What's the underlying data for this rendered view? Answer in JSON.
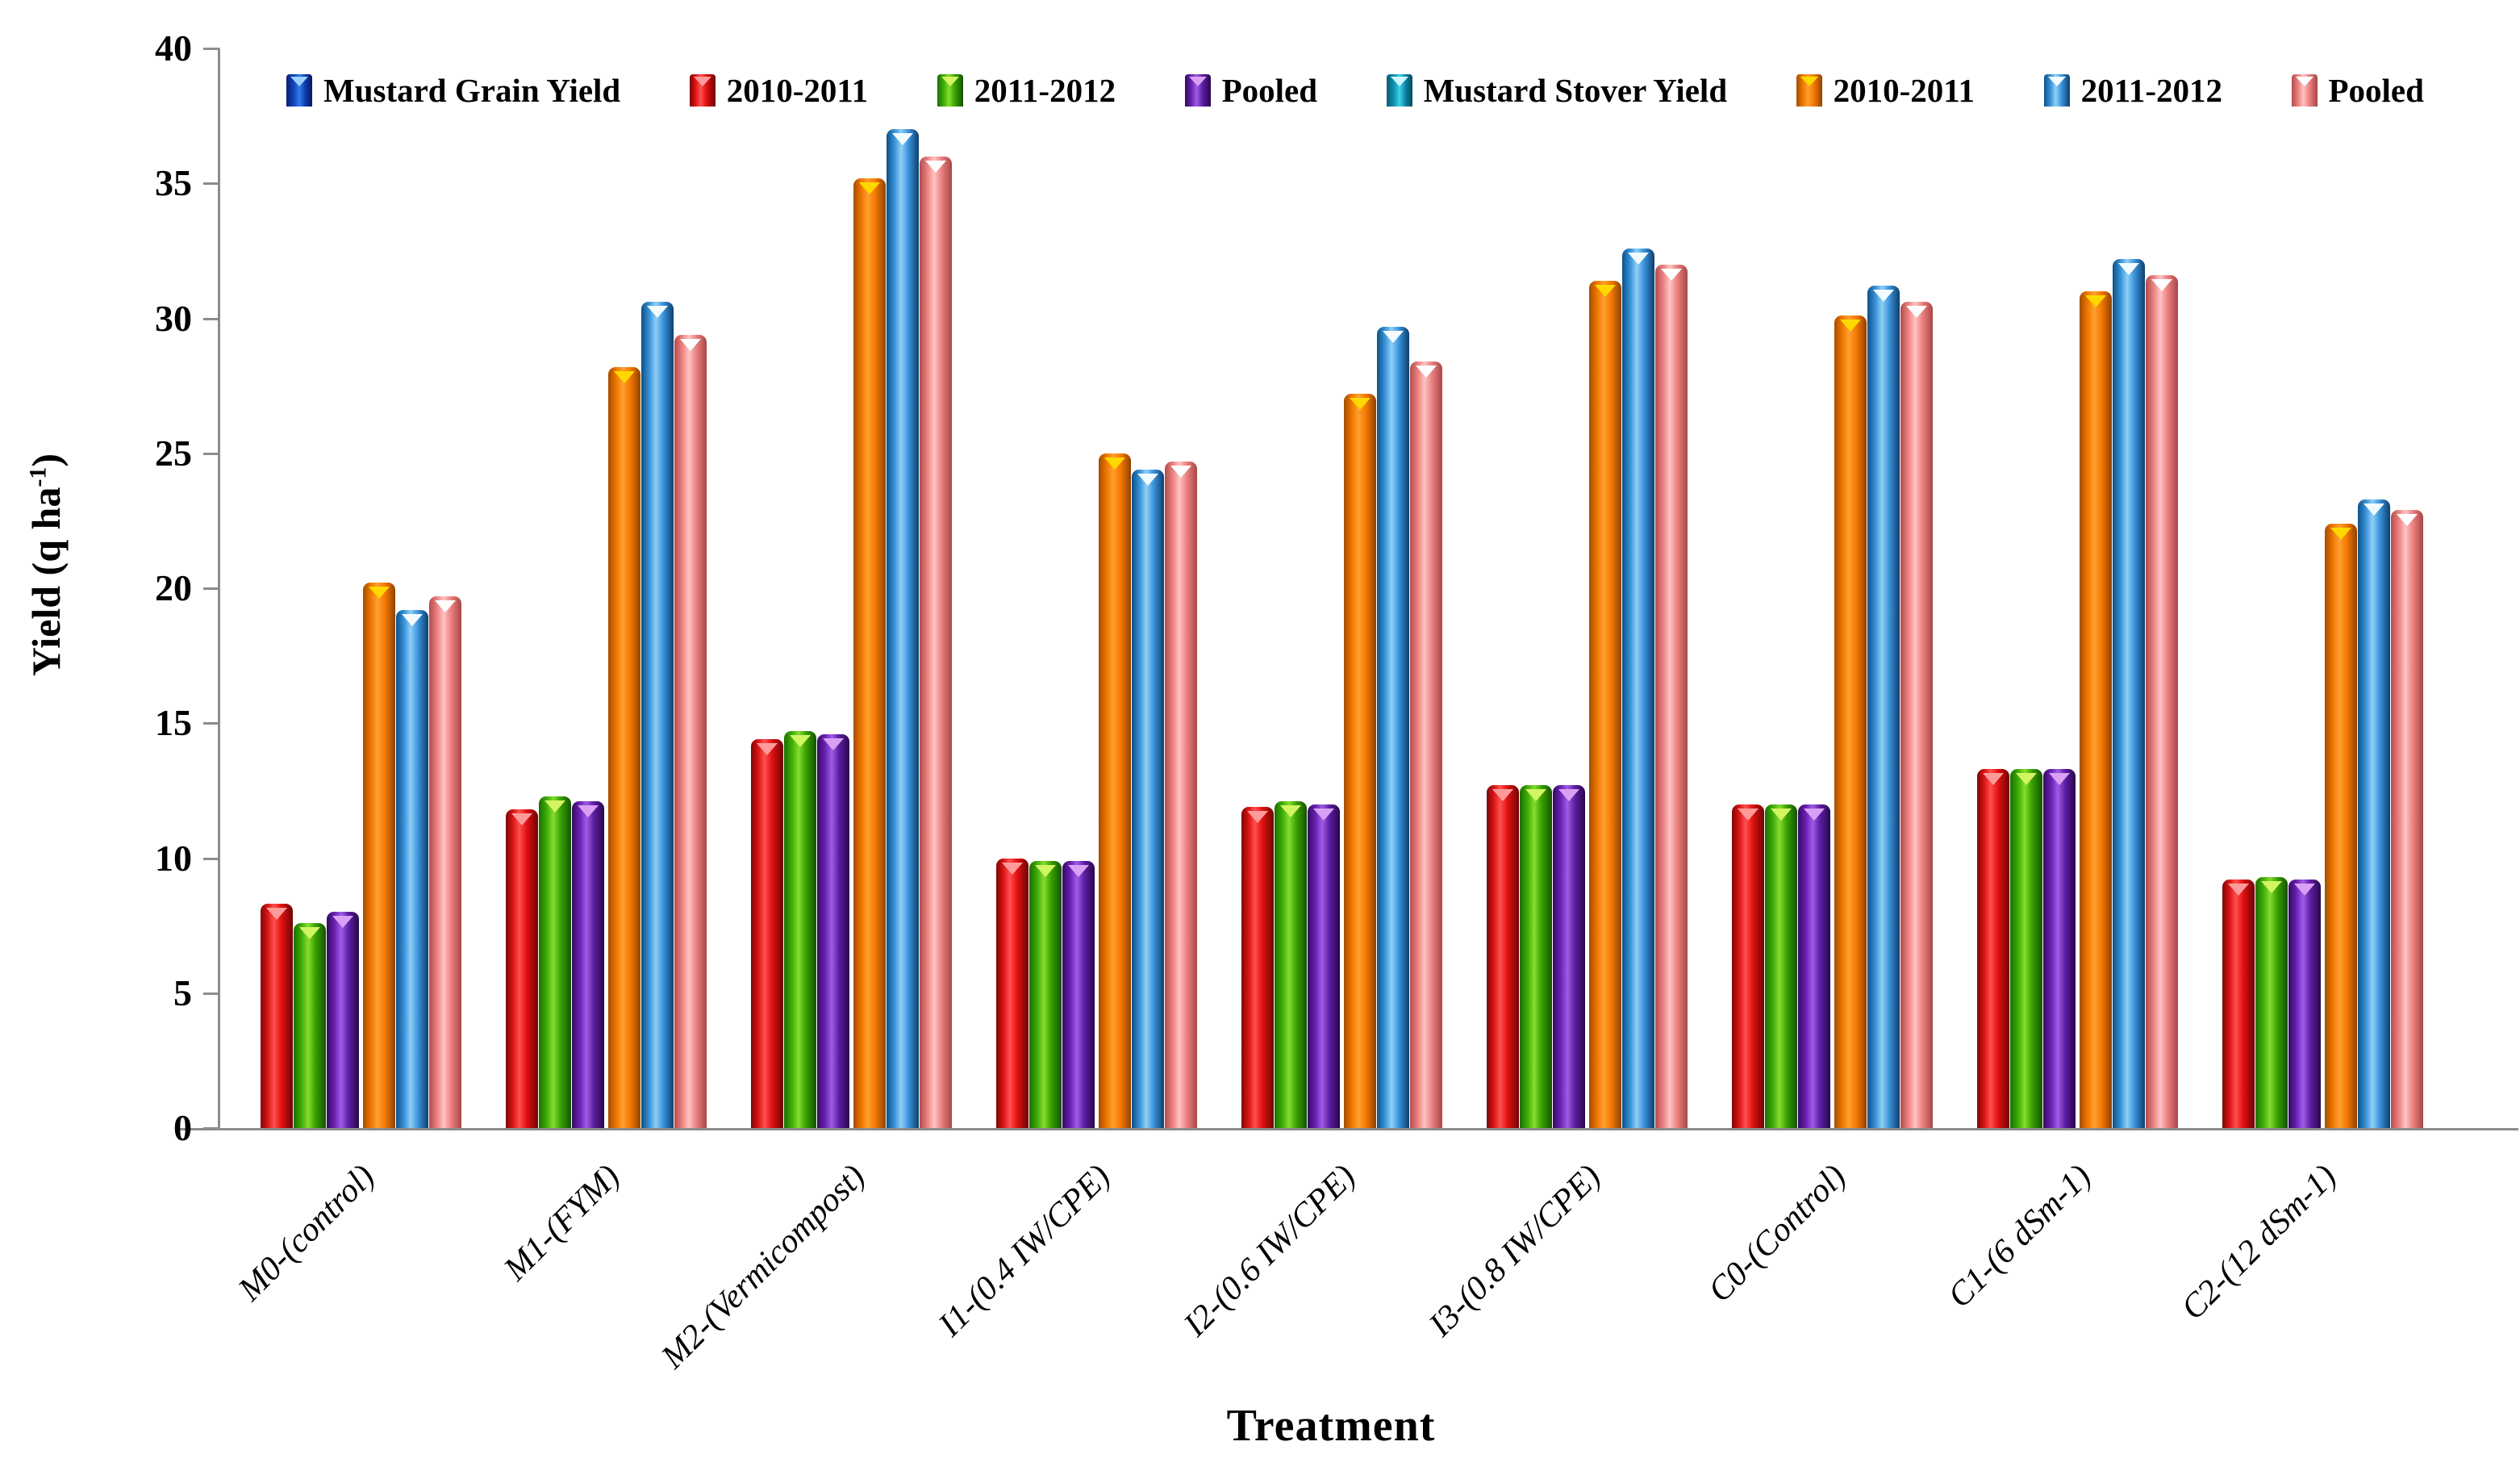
{
  "figure": {
    "y_axis_title_text": "Yield (q ha",
    "y_axis_title_sup": "-1",
    "y_axis_title_end": ")",
    "x_axis_title": "Treatment"
  },
  "chart_data": {
    "type": "bar",
    "title": "",
    "xlabel": "Treatment",
    "ylabel": "Yield (q ha-1)",
    "ylim": [
      0,
      40
    ],
    "yticks": [
      0,
      5,
      10,
      15,
      20,
      25,
      30,
      35,
      40
    ],
    "grid": false,
    "legend_position": "top",
    "categories": [
      "M0-(control)",
      "M1-(FYM)",
      "M2-(Vermicompost)",
      "I1-(0.4  IW/CPE)",
      "I2-(0.6  IW/CPE)",
      "I3-(0.8  IW/CPE)",
      "C0-(Control)",
      "C1-(6 dSm-1)",
      "C2-(12 dSm-1)"
    ],
    "legend": [
      {
        "label": "Mustard Grain Yield",
        "color": "dblue",
        "hex": "#1246c0"
      },
      {
        "label": "2010-2011",
        "color": "red",
        "hex": "#e01010"
      },
      {
        "label": "2011-2012",
        "color": "green",
        "hex": "#38a000"
      },
      {
        "label": "Pooled",
        "color": "purple",
        "hex": "#5c1da2"
      },
      {
        "label": "Mustard Stover Yield",
        "color": "teal",
        "hex": "#0f94b4"
      },
      {
        "label": "2010-2011",
        "color": "orange",
        "hex": "#f57800"
      },
      {
        "label": "2011-2012",
        "color": "lblue",
        "hex": "#3a92da"
      },
      {
        "label": "Pooled",
        "color": "pink",
        "hex": "#ec8080"
      }
    ],
    "series": [
      {
        "name": "Mustard Grain Yield 2010-2011",
        "color": "red",
        "values": [
          8.3,
          11.8,
          14.4,
          10.0,
          11.9,
          12.7,
          12.0,
          13.3,
          9.2
        ]
      },
      {
        "name": "Mustard Grain Yield 2011-2012",
        "color": "green",
        "values": [
          7.6,
          12.3,
          14.7,
          9.9,
          12.1,
          12.7,
          12.0,
          13.3,
          9.3
        ]
      },
      {
        "name": "Mustard Grain Yield Pooled",
        "color": "purple",
        "values": [
          8.0,
          12.1,
          14.6,
          9.9,
          12.0,
          12.7,
          12.0,
          13.3,
          9.2
        ]
      },
      {
        "name": "Mustard Stover Yield 2010-2011",
        "color": "orange",
        "values": [
          20.2,
          28.2,
          35.2,
          25.0,
          27.2,
          31.4,
          30.1,
          31.0,
          22.4
        ]
      },
      {
        "name": "Mustard Stover Yield 2011-2012",
        "color": "lblue",
        "values": [
          19.2,
          30.6,
          37.0,
          24.4,
          29.7,
          32.6,
          31.2,
          32.2,
          23.3
        ]
      },
      {
        "name": "Mustard Stover Yield Pooled",
        "color": "pink",
        "values": [
          19.7,
          29.4,
          36.0,
          24.7,
          28.4,
          32.0,
          30.6,
          31.6,
          22.9
        ]
      }
    ]
  }
}
